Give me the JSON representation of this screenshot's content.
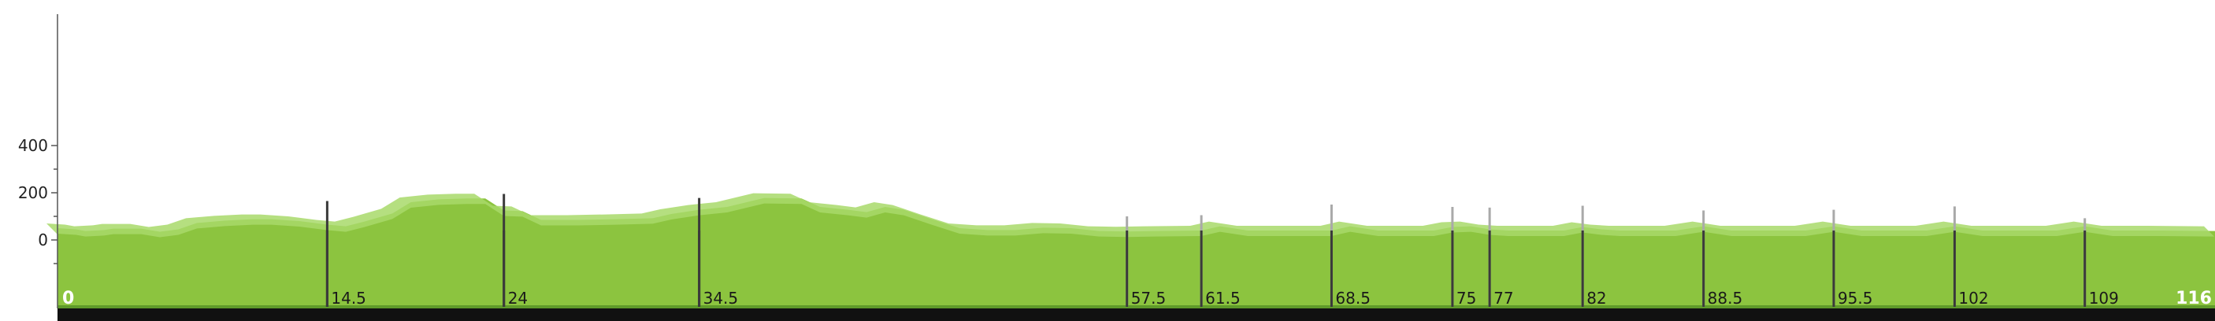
{
  "chart_data": {
    "type": "area",
    "title": "",
    "xlabel": "",
    "ylabel": "",
    "xlim": [
      0,
      116
    ],
    "ylim": [
      -170,
      470
    ],
    "y_ticks": [
      0,
      200,
      400
    ],
    "y_tick_labels": [
      "0",
      "200",
      "400"
    ],
    "grid": false,
    "colors": {
      "fill": "#8cc43f",
      "highlight": "#a8d96a",
      "baseline": "#111111",
      "marker_tall": "#3a3a3a",
      "marker_light": "#a9a9a9",
      "axis": "#555555"
    },
    "profile": [
      [
        0,
        50
      ],
      [
        1,
        45
      ],
      [
        1.5,
        38
      ],
      [
        2.5,
        42
      ],
      [
        3,
        48
      ],
      [
        4.5,
        48
      ],
      [
        5.5,
        35
      ],
      [
        6.5,
        45
      ],
      [
        7.5,
        72
      ],
      [
        9,
        82
      ],
      [
        10.5,
        88
      ],
      [
        11.5,
        88
      ],
      [
        13,
        80
      ],
      [
        14.5,
        65
      ],
      [
        15.5,
        58
      ],
      [
        16.5,
        78
      ],
      [
        18,
        112
      ],
      [
        19,
        160
      ],
      [
        20.5,
        172
      ],
      [
        22,
        176
      ],
      [
        23,
        176
      ],
      [
        24,
        125
      ],
      [
        25,
        122
      ],
      [
        26,
        85
      ],
      [
        28,
        85
      ],
      [
        30,
        88
      ],
      [
        32,
        92
      ],
      [
        33,
        110
      ],
      [
        34.5,
        128
      ],
      [
        36,
        140
      ],
      [
        38,
        178
      ],
      [
        40,
        176
      ],
      [
        41,
        140
      ],
      [
        42.5,
        128
      ],
      [
        43.5,
        118
      ],
      [
        44.5,
        140
      ],
      [
        45.5,
        128
      ],
      [
        47,
        88
      ],
      [
        48.5,
        50
      ],
      [
        50,
        42
      ],
      [
        51.5,
        42
      ],
      [
        53,
        52
      ],
      [
        54.5,
        50
      ],
      [
        56,
        38
      ],
      [
        57.5,
        36
      ],
      [
        59,
        38
      ],
      [
        61.5,
        40
      ],
      [
        62.5,
        58
      ],
      [
        64,
        40
      ],
      [
        67,
        40
      ],
      [
        68.5,
        40
      ],
      [
        69.5,
        58
      ],
      [
        71,
        40
      ],
      [
        74,
        40
      ],
      [
        75,
        55
      ],
      [
        76,
        58
      ],
      [
        77,
        45
      ],
      [
        78,
        40
      ],
      [
        81,
        40
      ],
      [
        82,
        55
      ],
      [
        83,
        45
      ],
      [
        84,
        40
      ],
      [
        87,
        40
      ],
      [
        88.5,
        58
      ],
      [
        90,
        40
      ],
      [
        94,
        40
      ],
      [
        95.5,
        58
      ],
      [
        97,
        40
      ],
      [
        100.5,
        40
      ],
      [
        102,
        58
      ],
      [
        103.5,
        40
      ],
      [
        107.5,
        40
      ],
      [
        109,
        58
      ],
      [
        110.5,
        40
      ],
      [
        113,
        40
      ],
      [
        116,
        38
      ]
    ],
    "markers": [
      {
        "km": 0,
        "label": "0",
        "height": 0,
        "tone": "end"
      },
      {
        "km": 14.5,
        "label": "14.5",
        "height": 165,
        "tone": "tall"
      },
      {
        "km": 24,
        "label": "24",
        "height": 195,
        "tone": "tall"
      },
      {
        "km": 34.5,
        "label": "34.5",
        "height": 178,
        "tone": "tall"
      },
      {
        "km": 57.5,
        "label": "57.5",
        "height": 100,
        "tone": "light"
      },
      {
        "km": 61.5,
        "label": "61.5",
        "height": 105,
        "tone": "light"
      },
      {
        "km": 68.5,
        "label": "68.5",
        "height": 150,
        "tone": "light"
      },
      {
        "km": 75,
        "label": "75",
        "height": 140,
        "tone": "light"
      },
      {
        "km": 77,
        "label": "77",
        "height": 137,
        "tone": "light"
      },
      {
        "km": 82,
        "label": "82",
        "height": 145,
        "tone": "light"
      },
      {
        "km": 88.5,
        "label": "88.5",
        "height": 125,
        "tone": "light"
      },
      {
        "km": 95.5,
        "label": "95.5",
        "height": 128,
        "tone": "light"
      },
      {
        "km": 102,
        "label": "102",
        "height": 142,
        "tone": "light"
      },
      {
        "km": 109,
        "label": "109",
        "height": 92,
        "tone": "light"
      },
      {
        "km": 116,
        "label": "116",
        "height": 0,
        "tone": "end"
      }
    ]
  }
}
